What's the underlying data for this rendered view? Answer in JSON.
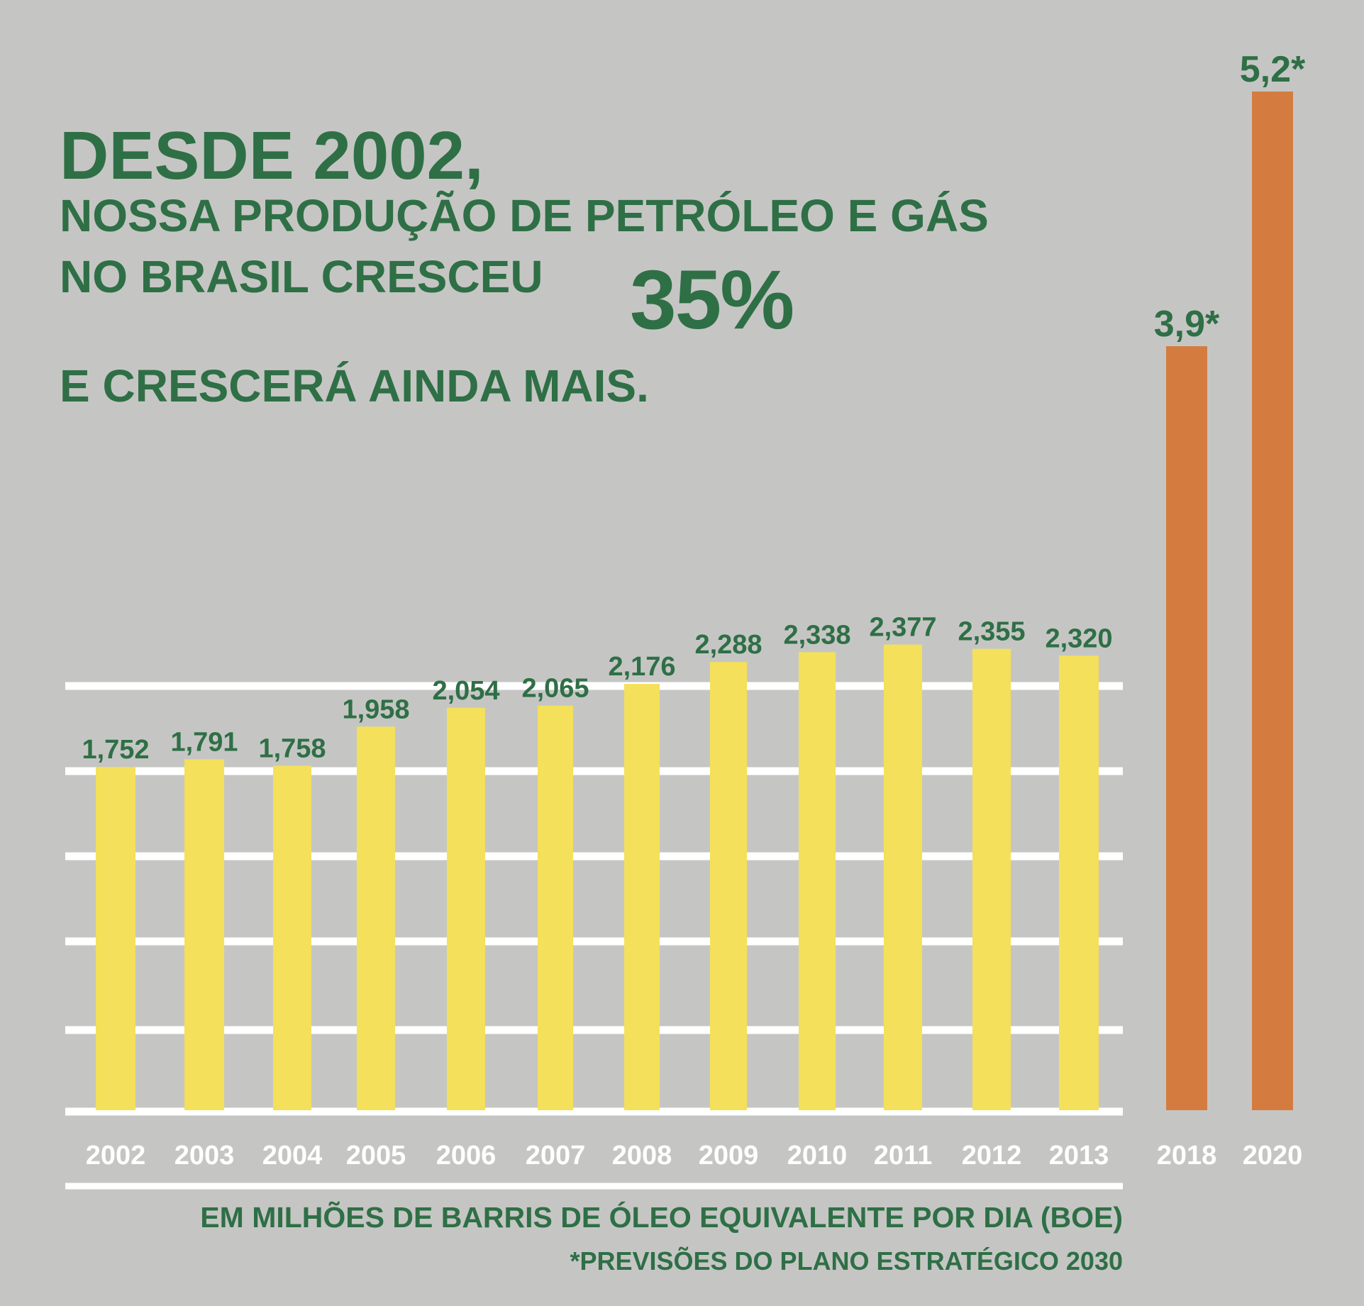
{
  "headline": {
    "line1": "DESDE 2002,",
    "line2": "NOSSA PRODUÇÃO DE PETRÓLEO E GÁS",
    "line3_text": "NO BRASIL CRESCEU",
    "line3_big": "35%",
    "line4": "E CRESCERÁ AINDA MAIS."
  },
  "footnotes": {
    "unit": "EM MILHÕES DE BARRIS DE ÓLEO EQUIVALENTE POR DIA (BOE)",
    "forecast": "*PREVISÕES DO PLANO ESTRATÉGICO 2030"
  },
  "colors": {
    "background": "#c5c6c4",
    "text_green": "#2f6f46",
    "bar_actual": "#f4e05a",
    "bar_forecast": "#d47c40",
    "gridline": "#ffffff"
  },
  "chart_data": {
    "type": "bar",
    "categories": [
      "2002",
      "2003",
      "2004",
      "2005",
      "2006",
      "2007",
      "2008",
      "2009",
      "2010",
      "2011",
      "2012",
      "2013",
      "2018",
      "2020"
    ],
    "values": [
      1.752,
      1.791,
      1.758,
      1.958,
      2.054,
      2.065,
      2.176,
      2.288,
      2.338,
      2.377,
      2.355,
      2.32,
      3.9,
      5.2
    ],
    "value_labels": [
      "1,752",
      "1,791",
      "1,758",
      "1,958",
      "2,054",
      "2,065",
      "2,176",
      "2,288",
      "2,338",
      "2,377",
      "2,355",
      "2,320",
      "3,9*",
      "5,2*"
    ],
    "forecast": [
      false,
      false,
      false,
      false,
      false,
      false,
      false,
      false,
      false,
      false,
      false,
      false,
      true,
      true
    ],
    "grid": true
  }
}
